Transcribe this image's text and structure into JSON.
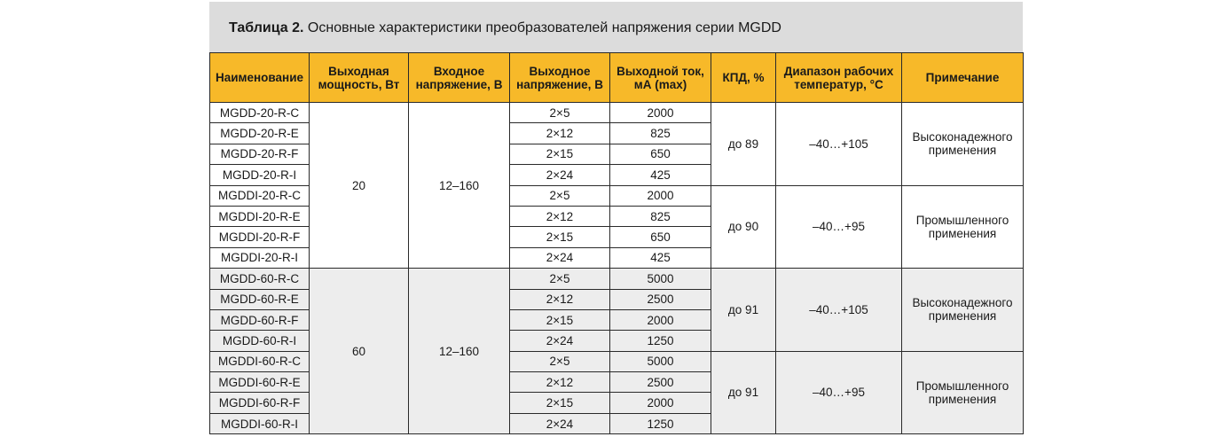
{
  "caption": {
    "label": "Таблица 2.",
    "text": " Основные характеристики преобразователей напряжения серии MGDD"
  },
  "headers": [
    [
      "Наименование"
    ],
    [
      "Выходная",
      "мощность, Вт"
    ],
    [
      "Входное",
      "напряжение, В"
    ],
    [
      "Выходное",
      "напряжение, В"
    ],
    [
      "Выходной ток,",
      "мА (max)"
    ],
    [
      "КПД, %"
    ],
    [
      "Диапазон рабочих",
      "температур, °С"
    ],
    [
      "Примечание"
    ]
  ],
  "groups": [
    {
      "power": "20",
      "input": "12–160",
      "subgroups": [
        {
          "eff": "до 89",
          "temp": "–40…+105",
          "note": [
            "Высоконадежного",
            "применения"
          ],
          "rows": [
            {
              "name": "MGDD-20-R-C",
              "vout": "2×5",
              "iout": "2000"
            },
            {
              "name": "MGDD-20-R-E",
              "vout": "2×12",
              "iout": "825"
            },
            {
              "name": "MGDD-20-R-F",
              "vout": "2×15",
              "iout": "650"
            },
            {
              "name": "MGDD-20-R-I",
              "vout": "2×24",
              "iout": "425"
            }
          ]
        },
        {
          "eff": "до 90",
          "temp": "–40…+95",
          "note": [
            "Промышленного",
            "применения"
          ],
          "rows": [
            {
              "name": "MGDDI-20-R-C",
              "vout": "2×5",
              "iout": "2000"
            },
            {
              "name": "MGDDI-20-R-E",
              "vout": "2×12",
              "iout": "825"
            },
            {
              "name": "MGDDI-20-R-F",
              "vout": "2×15",
              "iout": "650"
            },
            {
              "name": "MGDDI-20-R-I",
              "vout": "2×24",
              "iout": "425"
            }
          ]
        }
      ]
    },
    {
      "power": "60",
      "input": "12–160",
      "subgroups": [
        {
          "eff": "до 91",
          "temp": "–40…+105",
          "note": [
            "Высоконадежного",
            "применения"
          ],
          "rows": [
            {
              "name": "MGDD-60-R-C",
              "vout": "2×5",
              "iout": "5000"
            },
            {
              "name": "MGDD-60-R-E",
              "vout": "2×12",
              "iout": "2500"
            },
            {
              "name": "MGDD-60-R-F",
              "vout": "2×15",
              "iout": "2000"
            },
            {
              "name": "MGDD-60-R-I",
              "vout": "2×24",
              "iout": "1250"
            }
          ]
        },
        {
          "eff": "до 91",
          "temp": "–40…+95",
          "note": [
            "Промышленного",
            "применения"
          ],
          "rows": [
            {
              "name": "MGDDI-60-R-C",
              "vout": "2×5",
              "iout": "5000"
            },
            {
              "name": "MGDDI-60-R-E",
              "vout": "2×12",
              "iout": "2500"
            },
            {
              "name": "MGDDI-60-R-F",
              "vout": "2×15",
              "iout": "2000"
            },
            {
              "name": "MGDDI-60-R-I",
              "vout": "2×24",
              "iout": "1250"
            }
          ]
        }
      ]
    }
  ],
  "colors": {
    "header_bg": "#f7b929",
    "caption_bg": "#dcdcdc",
    "group2_bg": "#ededed"
  }
}
